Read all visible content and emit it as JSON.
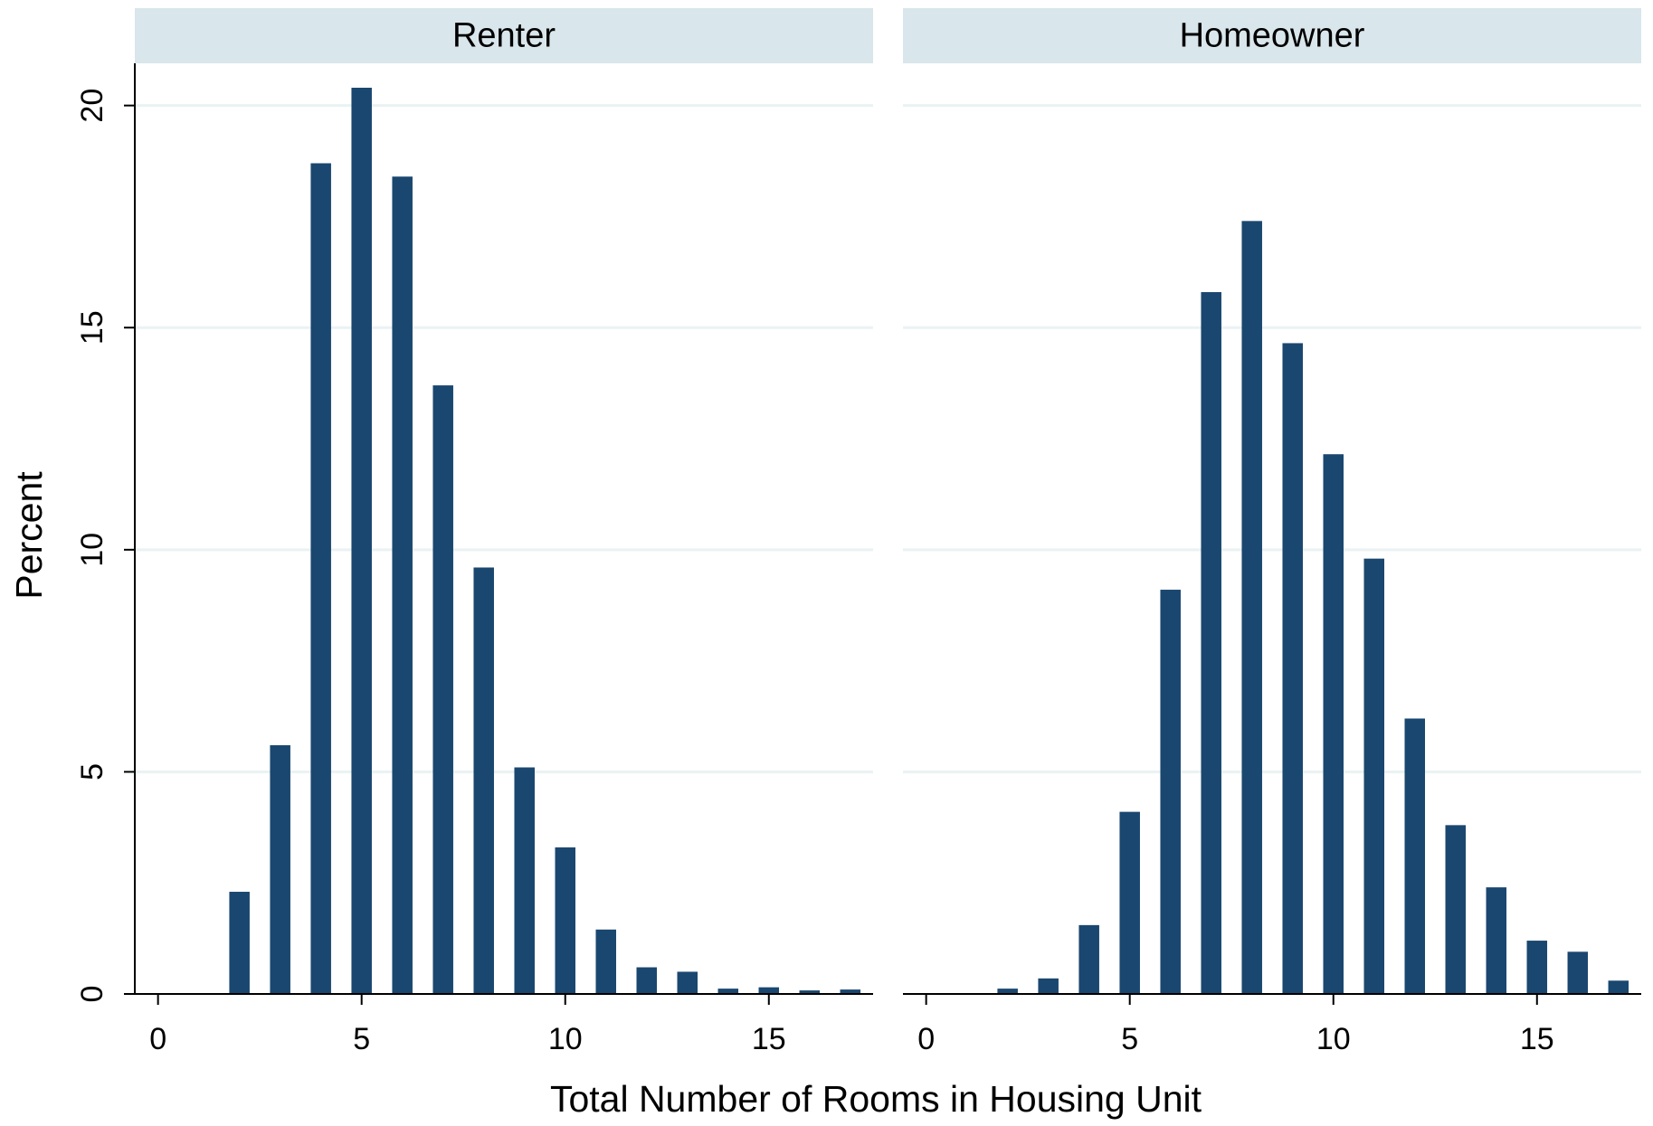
{
  "axis_labels": {
    "x": "Total Number of Rooms in Housing Unit",
    "y": "Percent"
  },
  "chart_data": [
    {
      "type": "bar",
      "title": "Renter",
      "color": "#1a476f",
      "x": [
        2,
        3,
        4,
        5,
        6,
        7,
        8,
        9,
        10,
        11,
        12,
        13,
        14,
        15,
        16,
        17
      ],
      "values": [
        2.3,
        5.6,
        18.7,
        20.4,
        18.4,
        13.7,
        9.6,
        5.1,
        3.3,
        1.45,
        0.6,
        0.5,
        0.12,
        0.15,
        0.08,
        0.1
      ],
      "xlim": [
        -0.57,
        17.56
      ],
      "xticks": [
        0,
        5,
        10,
        15
      ],
      "ylim": [
        0,
        20.95
      ],
      "yticks": [
        0,
        5,
        10,
        15,
        20
      ],
      "grid": true
    },
    {
      "type": "bar",
      "title": "Homeowner",
      "color": "#1a476f",
      "x": [
        2,
        3,
        4,
        5,
        6,
        7,
        8,
        9,
        10,
        11,
        12,
        13,
        14,
        15,
        16,
        17
      ],
      "values": [
        0.12,
        0.35,
        1.55,
        4.1,
        9.1,
        15.8,
        17.4,
        14.65,
        12.15,
        9.8,
        6.2,
        3.8,
        2.4,
        1.2,
        0.95,
        0.3
      ],
      "xlim": [
        -0.57,
        17.56
      ],
      "xticks": [
        0,
        5,
        10,
        15
      ],
      "ylim": [
        0,
        20.95
      ],
      "yticks": [
        0,
        5,
        10,
        15,
        20
      ],
      "grid": true
    }
  ]
}
